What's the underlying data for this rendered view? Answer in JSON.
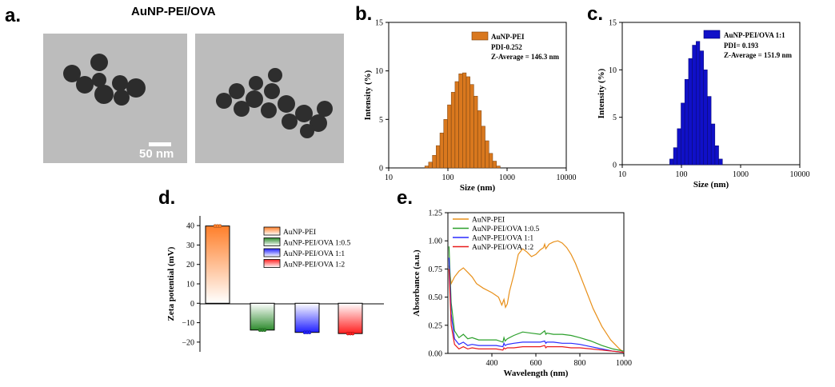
{
  "panels": {
    "a": "a.",
    "b": "b.",
    "c": "c.",
    "d": "d.",
    "e": "e."
  },
  "tem": {
    "title": "AuNP-PEI/OVA",
    "scale_label": "50 nm"
  },
  "chart_data": [
    {
      "id": "b",
      "type": "bar",
      "xscale": "log",
      "xlim": [
        10,
        10000
      ],
      "ylim": [
        0,
        15
      ],
      "xlabel": "Size (nm)",
      "ylabel": "Intensity (%)",
      "xticks": [
        "10",
        "100",
        "1000",
        "10000"
      ],
      "yticks": [
        "0",
        "5",
        "10",
        "15"
      ],
      "legend": {
        "position": "top-right",
        "entries": [
          "AuNP-PEI"
        ]
      },
      "annotations": [
        "PDI-0.252",
        "Z-Average = 146.3 nm"
      ],
      "color": "#d9781e",
      "x": [
        43.8,
        50.7,
        58.8,
        68.1,
        78.8,
        91.3,
        105.7,
        122.4,
        141.8,
        164.2,
        190.1,
        220.2,
        255.0,
        295.3,
        342.0,
        396.1,
        458.7,
        531.2,
        615.1,
        712.4
      ],
      "values": [
        0.2,
        0.6,
        1.3,
        2.3,
        3.6,
        5.0,
        6.5,
        7.8,
        8.9,
        9.7,
        9.8,
        9.4,
        8.6,
        7.4,
        5.9,
        4.3,
        2.8,
        1.5,
        0.7,
        0.2
      ]
    },
    {
      "id": "c",
      "type": "bar",
      "xscale": "log",
      "xlim": [
        10,
        10000
      ],
      "ylim": [
        0,
        15
      ],
      "xlabel": "Size (nm)",
      "ylabel": "Intensity (%)",
      "xticks": [
        "10",
        "100",
        "1000",
        "10000"
      ],
      "yticks": [
        "0",
        "5",
        "10",
        "15"
      ],
      "legend": {
        "position": "top-right",
        "entries": [
          "AuNP-PEI/OVA 1:1"
        ]
      },
      "annotations": [
        "PDI= 0.193",
        "Z-Average = 151.9 nm"
      ],
      "color": "#1010c8",
      "x": [
        68.1,
        78.8,
        91.3,
        105.7,
        122.4,
        141.8,
        164.2,
        190.1,
        220.2,
        255.0,
        295.3,
        342.0,
        396.1,
        458.7
      ],
      "values": [
        0.6,
        1.8,
        3.8,
        6.5,
        9.0,
        11.2,
        12.6,
        13.0,
        12.0,
        10.0,
        7.2,
        4.3,
        2.0,
        0.6
      ]
    },
    {
      "id": "d",
      "type": "bar",
      "ylim": [
        -25,
        45
      ],
      "ylabel": "Zeta potential (mV)",
      "yticks": [
        "−20",
        "−10",
        "0",
        "10",
        "20",
        "30",
        "40"
      ],
      "categories": [
        "AuNP-PEI",
        "AuNP-PEI/OVA 1:0.5",
        "AuNP-PEI/OVA 1:1",
        "AuNP-PEI/OVA 1:2"
      ],
      "values": [
        39.8,
        -13.8,
        -15.0,
        -15.6
      ],
      "errors": [
        0.4,
        0.3,
        0.4,
        0.3
      ],
      "colors": [
        "#ff7f2a",
        "#2e8b2e",
        "#2020ff",
        "#ff2020"
      ],
      "legend": {
        "position": "top-right",
        "entries": [
          "AuNP-PEI",
          "AuNP-PEI/OVA 1:0.5",
          "AuNP-PEI/OVA 1:1",
          "AuNP-PEI/OVA 1:2"
        ]
      }
    },
    {
      "id": "e",
      "type": "line",
      "xlim": [
        200,
        1000
      ],
      "ylim": [
        0,
        1.25
      ],
      "xlabel": "Wavelength (nm)",
      "ylabel": "Absorbance (a.u.)",
      "xticks": [
        "400",
        "600",
        "800",
        "1000"
      ],
      "yticks": [
        "0.00",
        "0.25",
        "0.50",
        "0.75",
        "1.00",
        "1.25"
      ],
      "legend": {
        "position": "top-left",
        "entries": [
          "AuNP-PEI",
          "AuNP-PEI/OVA 1:0.5",
          "AuNP-PEI/OVA 1:1",
          "AuNP-PEI/OVA 1:2"
        ]
      },
      "series": [
        {
          "name": "AuNP-PEI",
          "color": "#e8901a",
          "x": [
            205,
            215,
            230,
            250,
            270,
            290,
            310,
            330,
            360,
            400,
            430,
            445,
            455,
            462,
            470,
            480,
            500,
            520,
            540,
            560,
            580,
            600,
            620,
            635,
            640,
            645,
            660,
            680,
            700,
            720,
            740,
            760,
            780,
            800,
            830,
            860,
            900,
            940,
            980,
            1000
          ],
          "y": [
            0.78,
            0.62,
            0.68,
            0.73,
            0.76,
            0.72,
            0.68,
            0.62,
            0.58,
            0.54,
            0.5,
            0.43,
            0.48,
            0.41,
            0.44,
            0.55,
            0.7,
            0.88,
            0.93,
            0.9,
            0.86,
            0.88,
            0.92,
            0.94,
            0.97,
            0.93,
            0.97,
            0.99,
            1.0,
            0.98,
            0.94,
            0.88,
            0.8,
            0.7,
            0.55,
            0.4,
            0.24,
            0.12,
            0.04,
            0.01
          ]
        },
        {
          "name": "AuNP-PEI/OVA 1:0.5",
          "color": "#2ca02c",
          "x": [
            205,
            215,
            230,
            250,
            270,
            290,
            310,
            340,
            380,
            420,
            450,
            455,
            460,
            470,
            500,
            540,
            580,
            620,
            640,
            645,
            650,
            680,
            720,
            760,
            800,
            850,
            900,
            950,
            1000
          ],
          "y": [
            0.95,
            0.45,
            0.2,
            0.14,
            0.17,
            0.13,
            0.14,
            0.12,
            0.12,
            0.12,
            0.1,
            0.14,
            0.11,
            0.13,
            0.16,
            0.19,
            0.18,
            0.17,
            0.2,
            0.17,
            0.18,
            0.17,
            0.17,
            0.16,
            0.14,
            0.11,
            0.07,
            0.04,
            0.02
          ]
        },
        {
          "name": "AuNP-PEI/OVA 1:1",
          "color": "#2a2aff",
          "x": [
            205,
            215,
            230,
            250,
            270,
            290,
            310,
            340,
            380,
            420,
            450,
            455,
            460,
            470,
            500,
            540,
            580,
            620,
            640,
            645,
            650,
            680,
            720,
            760,
            800,
            850,
            900,
            950,
            1000
          ],
          "y": [
            0.85,
            0.35,
            0.13,
            0.08,
            0.1,
            0.07,
            0.08,
            0.07,
            0.07,
            0.07,
            0.06,
            0.09,
            0.07,
            0.08,
            0.09,
            0.1,
            0.1,
            0.1,
            0.11,
            0.09,
            0.1,
            0.1,
            0.09,
            0.09,
            0.08,
            0.06,
            0.04,
            0.02,
            0.01
          ]
        },
        {
          "name": "AuNP-PEI/OVA 1:2",
          "color": "#e81b1b",
          "x": [
            205,
            215,
            230,
            250,
            270,
            290,
            310,
            340,
            380,
            420,
            450,
            455,
            460,
            470,
            500,
            540,
            580,
            620,
            640,
            645,
            650,
            680,
            720,
            760,
            800,
            850,
            900,
            950,
            1000
          ],
          "y": [
            0.75,
            0.25,
            0.08,
            0.04,
            0.06,
            0.04,
            0.05,
            0.04,
            0.04,
            0.04,
            0.03,
            0.05,
            0.04,
            0.05,
            0.05,
            0.06,
            0.06,
            0.06,
            0.07,
            0.05,
            0.06,
            0.06,
            0.06,
            0.05,
            0.05,
            0.04,
            0.03,
            0.02,
            0.01
          ]
        }
      ]
    }
  ]
}
